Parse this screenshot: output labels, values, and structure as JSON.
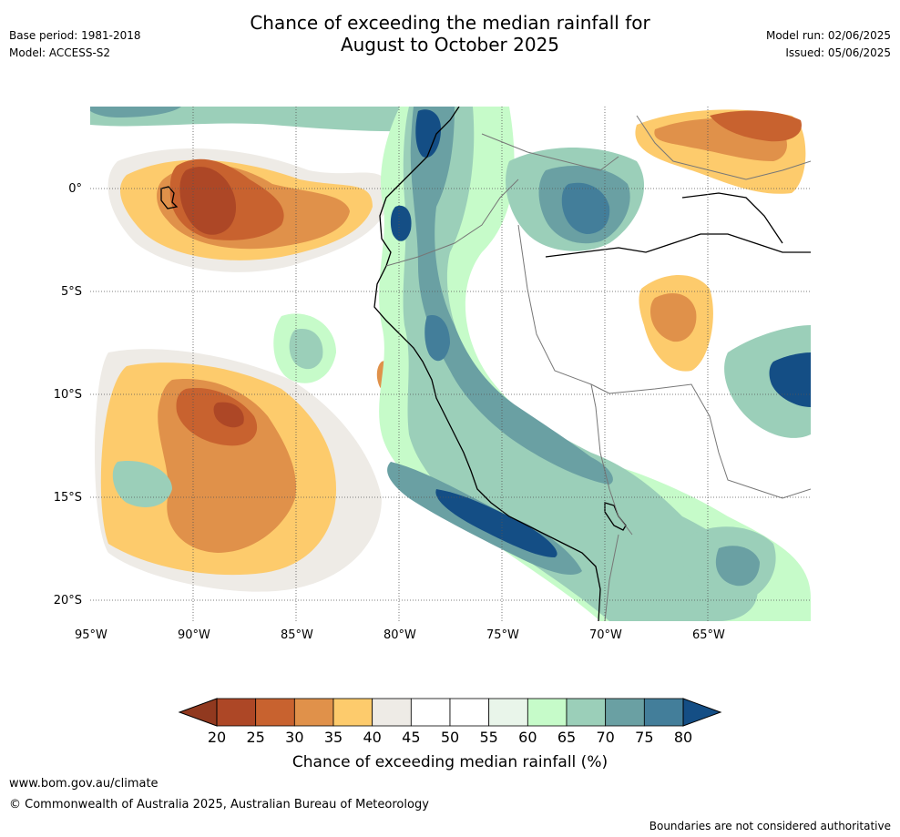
{
  "title": {
    "line1": "Chance of exceeding the median rainfall for",
    "line2": "August to October 2025"
  },
  "meta_left": {
    "base_period": "Base period: 1981-2018",
    "model": "Model: ACCESS-S2"
  },
  "meta_right": {
    "model_run": "Model run: 02/06/2025",
    "issued": "Issued: 05/06/2025"
  },
  "map": {
    "lon_labels": [
      "95°W",
      "90°W",
      "85°W",
      "80°W",
      "75°W",
      "70°W",
      "65°W"
    ],
    "lat_labels": [
      "0°",
      "5°S",
      "10°S",
      "15°S",
      "20°S"
    ]
  },
  "colorbar": {
    "ticks": [
      "20",
      "25",
      "30",
      "35",
      "40",
      "45",
      "50",
      "55",
      "60",
      "65",
      "70",
      "75",
      "80"
    ],
    "colors": [
      "#ad4726",
      "#c8622f",
      "#e0914a",
      "#fdcb6c",
      "#eeebe6",
      "#ffffff",
      "#ffffff",
      "#e9f5ea",
      "#c6fbc9",
      "#9bcfb9",
      "#6aa0a3",
      "#437e9a"
    ],
    "low_end_color": "#91391f",
    "high_end_color": "#144e85",
    "label": "Chance of exceeding median rainfall (%)"
  },
  "footer": {
    "url": "www.bom.gov.au/climate",
    "copyright": "© Commonwealth of Australia 2025, Australian Bureau of Meteorology",
    "disclaimer": "Boundaries are not considered authoritative"
  }
}
